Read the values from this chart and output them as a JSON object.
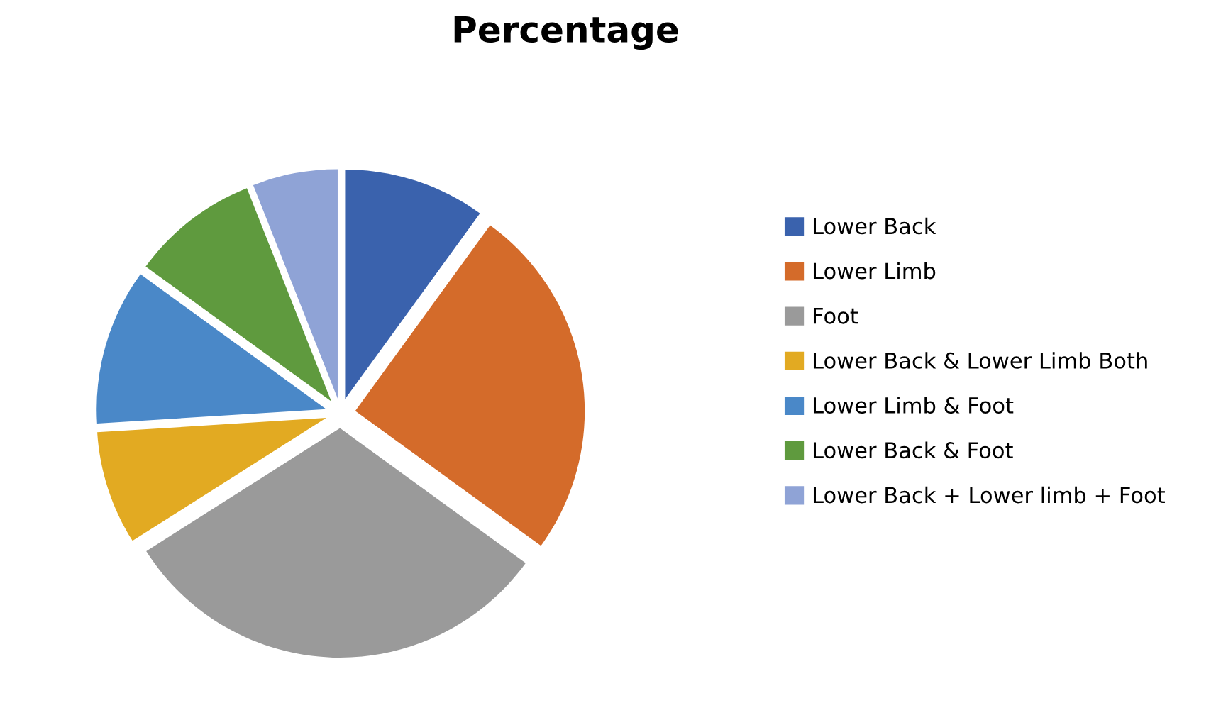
{
  "chart_data": {
    "type": "pie",
    "title": "Percentage",
    "categories": [
      "Lower Back",
      "Lower Limb",
      "Foot",
      "Lower Back & Lower Limb Both",
      "Lower Limb & Foot",
      "Lower Back & Foot",
      "Lower Back + Lower limb + Foot"
    ],
    "values": [
      10,
      25,
      31,
      8,
      11,
      9,
      6
    ],
    "colors": [
      "#3a62ad",
      "#d46b2a",
      "#9a9a9a",
      "#e2aa22",
      "#4a88c8",
      "#5f9a3e",
      "#8fa3d6"
    ],
    "legend": "right"
  }
}
